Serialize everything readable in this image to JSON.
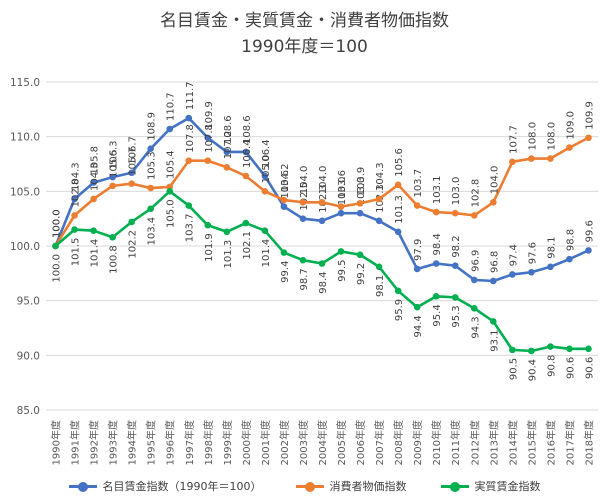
{
  "chart_data": {
    "type": "line",
    "title_line1": "名目賃金・実質賃金・消費者物価指数",
    "title_line2": "1990年度＝100",
    "xlabel": "",
    "ylabel": "",
    "ylim": [
      85.0,
      115.0
    ],
    "yticks": [
      "85.0",
      "90.0",
      "95.0",
      "100.0",
      "105.0",
      "110.0",
      "115.0"
    ],
    "grid": true,
    "legend_position": "bottom",
    "categories": [
      "1990年度",
      "1991年度",
      "1992年度",
      "1993年度",
      "1994年度",
      "1995年度",
      "1996年度",
      "1997年度",
      "1998年度",
      "1999年度",
      "2000年度",
      "2001年度",
      "2002年度",
      "2003年度",
      "2004年度",
      "2005年度",
      "2006年度",
      "2007年度",
      "2008年度",
      "2009年度",
      "2010年度",
      "2011年度",
      "2012年度",
      "2013年度",
      "2014年度",
      "2015年度",
      "2016年度",
      "2017年度",
      "2018年度"
    ],
    "series": [
      {
        "name": "名目賃金指数（1990年＝100）",
        "color": "#4472C4",
        "values": [
          100.0,
          104.3,
          105.8,
          106.3,
          106.7,
          108.9,
          110.7,
          111.7,
          109.9,
          108.6,
          108.6,
          106.4,
          103.6,
          102.5,
          102.3,
          103.0,
          103.0,
          102.3,
          101.3,
          97.9,
          98.4,
          98.2,
          96.9,
          96.8,
          97.4,
          97.6,
          98.1,
          98.8,
          99.6
        ],
        "labels": [
          "100.0",
          "104.3",
          "105.8",
          "106.3",
          "106.7",
          "108.9",
          "110.7",
          "111.7",
          "109.9",
          "108.6",
          "108.6",
          "106.4",
          "103.6",
          "102.5",
          "102.3",
          "103.0",
          "103.0",
          "102.3",
          "101.3",
          "97.9",
          "98.4",
          "98.2",
          "96.9",
          "96.8",
          "97.4",
          "97.6",
          "98.1",
          "98.8",
          "99.6"
        ]
      },
      {
        "name": "消費者物価指数",
        "color": "#ED7D31",
        "values": [
          100.0,
          102.8,
          104.3,
          105.5,
          105.7,
          105.3,
          105.4,
          107.8,
          107.8,
          107.2,
          106.4,
          105.0,
          104.2,
          104.0,
          104.0,
          103.6,
          103.9,
          104.3,
          105.6,
          103.7,
          103.1,
          103.0,
          102.8,
          104.0,
          107.7,
          108.0,
          108.0,
          109.0,
          109.9
        ],
        "labels": [
          "100.0",
          "102.8",
          "104.3",
          "105.5",
          "105.7",
          "105.3",
          "105.4",
          "107.8",
          "107.8",
          "107.2",
          "106.4",
          "105.0",
          "104.2",
          "104.0",
          "104.0",
          "103.6",
          "103.9",
          "104.3",
          "105.6",
          "103.7",
          "103.1",
          "103.0",
          "102.8",
          "104.0",
          "107.7",
          "108.0",
          "108.0",
          "109.0",
          "109.9"
        ]
      },
      {
        "name": "実質賃金指数",
        "color": "#00B050",
        "values": [
          100.0,
          101.5,
          101.4,
          100.8,
          102.2,
          103.4,
          105.0,
          103.7,
          101.9,
          101.3,
          102.1,
          101.4,
          99.4,
          98.7,
          98.4,
          99.5,
          99.2,
          98.1,
          95.9,
          94.4,
          95.4,
          95.3,
          94.3,
          93.1,
          90.5,
          90.4,
          90.8,
          90.6,
          90.6
        ],
        "labels": [
          "100.0",
          "101.5",
          "101.4",
          "100.8",
          "102.2",
          "103.4",
          "105.0",
          "103.7",
          "101.9",
          "101.3",
          "102.1",
          "101.4",
          "99.4",
          "98.7",
          "98.4",
          "99.5",
          "99.2",
          "98.1",
          "95.9",
          "94.4",
          "95.4",
          "95.3",
          "94.3",
          "93.1",
          "90.5",
          "90.4",
          "90.8",
          "90.6",
          "90.6"
        ]
      }
    ]
  }
}
